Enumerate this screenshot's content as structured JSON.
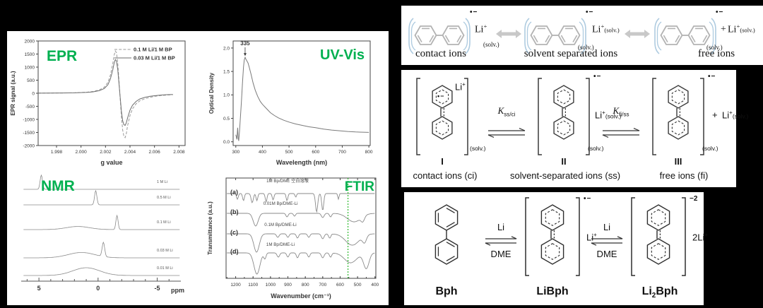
{
  "figure": {
    "background": "#000000",
    "accent_green": "#00b050",
    "ftir_line_green": "#2db92d"
  },
  "chart_data": [
    {
      "id": "epr",
      "type": "line",
      "title": "EPR",
      "xlabel": "g value",
      "ylabel": "EPR signal (a.u.)",
      "xlim": [
        1.9965,
        2.0085
      ],
      "ylim": [
        -2000,
        2000
      ],
      "xticks": [
        1.998,
        2.0,
        2.002,
        2.004,
        2.006,
        2.008
      ],
      "yticks": [
        -2000,
        -1500,
        -1000,
        -500,
        0,
        500,
        1000,
        1500,
        2000
      ],
      "legend_position": "top-right",
      "grid": false,
      "series": [
        {
          "name": "0.1 M Li/1 M BP",
          "style": "dashed",
          "color": "#9a9a9a",
          "points": [
            [
              1.9965,
              5
            ],
            [
              1.9975,
              8
            ],
            [
              1.9985,
              12
            ],
            [
              1.9995,
              20
            ],
            [
              2.0005,
              40
            ],
            [
              2.001,
              70
            ],
            [
              2.0015,
              130
            ],
            [
              2.0019,
              230
            ],
            [
              2.0022,
              420
            ],
            [
              2.0024,
              700
            ],
            [
              2.0026,
              1150
            ],
            [
              2.0027,
              1450
            ],
            [
              2.0028,
              1620
            ],
            [
              2.0029,
              1550
            ],
            [
              2.003,
              1150
            ],
            [
              2.0031,
              500
            ],
            [
              2.0032,
              -200
            ],
            [
              2.0033,
              -900
            ],
            [
              2.0034,
              -1400
            ],
            [
              2.0035,
              -1650
            ],
            [
              2.0036,
              -1700
            ],
            [
              2.0037,
              -1550
            ],
            [
              2.0038,
              -1250
            ],
            [
              2.004,
              -850
            ],
            [
              2.0042,
              -600
            ],
            [
              2.0045,
              -400
            ],
            [
              2.0048,
              -290
            ],
            [
              2.0052,
              -210
            ],
            [
              2.0056,
              -160
            ],
            [
              2.006,
              -120
            ],
            [
              2.0065,
              -90
            ],
            [
              2.007,
              -70
            ],
            [
              2.0075,
              -55
            ]
          ]
        },
        {
          "name": "0.03 M Li/1 M BP",
          "style": "solid",
          "color": "#6e6e6e",
          "points": [
            [
              1.9965,
              4
            ],
            [
              1.9975,
              6
            ],
            [
              1.9985,
              10
            ],
            [
              1.9995,
              16
            ],
            [
              2.0005,
              32
            ],
            [
              2.001,
              55
            ],
            [
              2.0015,
              100
            ],
            [
              2.0019,
              180
            ],
            [
              2.0022,
              330
            ],
            [
              2.0024,
              550
            ],
            [
              2.0026,
              900
            ],
            [
              2.0027,
              1150
            ],
            [
              2.0028,
              1290
            ],
            [
              2.0029,
              1230
            ],
            [
              2.003,
              900
            ],
            [
              2.0031,
              380
            ],
            [
              2.0032,
              -150
            ],
            [
              2.0033,
              -700
            ],
            [
              2.0034,
              -1050
            ],
            [
              2.0035,
              -1200
            ],
            [
              2.0036,
              -1230
            ],
            [
              2.0037,
              -1130
            ],
            [
              2.0038,
              -950
            ],
            [
              2.004,
              -650
            ],
            [
              2.0042,
              -460
            ],
            [
              2.0045,
              -310
            ],
            [
              2.0048,
              -220
            ],
            [
              2.0052,
              -160
            ],
            [
              2.0056,
              -120
            ],
            [
              2.006,
              -95
            ],
            [
              2.0065,
              -70
            ],
            [
              2.007,
              -55
            ],
            [
              2.0075,
              -45
            ]
          ]
        }
      ]
    },
    {
      "id": "uv",
      "type": "line",
      "title": "UV-Vis",
      "xlabel": "Wavelength (nm)",
      "ylabel": "Optical Density",
      "xlim": [
        290,
        805
      ],
      "ylim": [
        -0.08,
        2.15
      ],
      "xticks": [
        300,
        400,
        500,
        600,
        700,
        800
      ],
      "yticks": [
        0.0,
        0.5,
        1.0,
        1.5,
        2.0
      ],
      "peak_annotation": {
        "x": 335,
        "y": 1.8,
        "label": "335"
      },
      "color": "#7a7a7a",
      "points": [
        [
          300,
          0.15
        ],
        [
          304,
          0.05
        ],
        [
          307,
          0.3
        ],
        [
          309,
          0.08
        ],
        [
          311,
          0.02
        ],
        [
          314,
          0.22
        ],
        [
          317,
          0.5
        ],
        [
          321,
          0.85
        ],
        [
          325,
          1.25
        ],
        [
          329,
          1.6
        ],
        [
          332,
          1.75
        ],
        [
          335,
          1.8
        ],
        [
          338,
          1.76
        ],
        [
          342,
          1.72
        ],
        [
          346,
          1.68
        ],
        [
          350,
          1.6
        ],
        [
          357,
          1.45
        ],
        [
          365,
          1.25
        ],
        [
          373,
          1.1
        ],
        [
          382,
          0.97
        ],
        [
          392,
          0.86
        ],
        [
          400,
          0.8
        ],
        [
          415,
          0.71
        ],
        [
          430,
          0.62
        ],
        [
          445,
          0.56
        ],
        [
          460,
          0.51
        ],
        [
          480,
          0.46
        ],
        [
          500,
          0.42
        ],
        [
          525,
          0.38
        ],
        [
          550,
          0.35
        ],
        [
          575,
          0.32
        ],
        [
          600,
          0.3
        ],
        [
          630,
          0.27
        ],
        [
          660,
          0.25
        ],
        [
          690,
          0.235
        ],
        [
          720,
          0.22
        ],
        [
          750,
          0.21
        ],
        [
          775,
          0.205
        ],
        [
          800,
          0.2
        ]
      ]
    },
    {
      "id": "nmr",
      "type": "line",
      "title": "NMR",
      "xlabel": "ppm",
      "xlim": [
        6.5,
        -7
      ],
      "xticks": [
        5,
        0,
        -5
      ],
      "color": "#8a8a8a",
      "traces": [
        {
          "label": "1 M Li",
          "peaks": [
            {
              "ppm": 4.8,
              "height": 1.0,
              "width": 0.14
            }
          ]
        },
        {
          "label": "0.5 M Li",
          "peaks": [
            {
              "ppm": 0.2,
              "height": 1.0,
              "width": 0.14
            }
          ]
        },
        {
          "label": "0.1 M Li",
          "peaks": [
            {
              "ppm": -1.6,
              "height": 1.0,
              "width": 0.13
            },
            {
              "ppm": 1.7,
              "height": 0.22,
              "width": 1.4
            }
          ]
        },
        {
          "label": "0.03 M Li",
          "peaks": [
            {
              "ppm": -0.45,
              "height": 1.0,
              "width": 0.15
            },
            {
              "ppm": 1.4,
              "height": 0.38,
              "width": 1.6
            }
          ]
        },
        {
          "label": "0.01 M Li",
          "peaks": [
            {
              "ppm": 1.0,
              "height": 0.55,
              "width": 1.6
            }
          ]
        }
      ]
    },
    {
      "id": "ftir",
      "type": "line",
      "title": "FTIR",
      "xlabel": "Wavenumber (cm⁻¹)",
      "ylabel": "Transmittance (a.u.)",
      "xlim": [
        1255,
        395
      ],
      "xticks": [
        1200,
        1100,
        1000,
        900,
        800,
        700,
        600,
        500,
        400
      ],
      "marker_line": {
        "x": 555,
        "style": "dashed",
        "color": "#2db92d"
      },
      "color": "#8a8a8a",
      "traces": [
        {
          "tag": "(a)",
          "label": "1M Bp/DME 空白溶液",
          "dips": [
            {
              "c": 1190,
              "w": 7,
              "d": 8
            },
            {
              "c": 1155,
              "w": 7,
              "d": 10
            },
            {
              "c": 1105,
              "w": 9,
              "d": 13
            },
            {
              "c": 1078,
              "w": 7,
              "d": 10
            },
            {
              "c": 1025,
              "w": 7,
              "d": 12
            },
            {
              "c": 985,
              "w": 7,
              "d": 9
            },
            {
              "c": 905,
              "w": 7,
              "d": 10
            },
            {
              "c": 855,
              "w": 6,
              "d": 5
            },
            {
              "c": 735,
              "w": 9,
              "d": 26
            },
            {
              "c": 700,
              "w": 8,
              "d": 24
            },
            {
              "c": 610,
              "w": 5,
              "d": 8
            }
          ]
        },
        {
          "tag": "(b)",
          "label": "0.01M Bp/DME-Li",
          "dips": [
            {
              "c": 1085,
              "w": 20,
              "d": 18
            },
            {
              "c": 905,
              "w": 9,
              "d": 5
            },
            {
              "c": 862,
              "w": 8,
              "d": 4
            },
            {
              "c": 700,
              "w": 11,
              "d": 6
            },
            {
              "c": 655,
              "w": 9,
              "d": 5
            },
            {
              "c": 520,
              "w": 55,
              "d": 12
            },
            {
              "c": 470,
              "w": 14,
              "d": 7
            }
          ]
        },
        {
          "tag": "(c)",
          "label": "0.1M Bp/DME-Li",
          "dips": [
            {
              "c": 1080,
              "w": 22,
              "d": 26
            },
            {
              "c": 958,
              "w": 10,
              "d": 5
            },
            {
              "c": 900,
              "w": 9,
              "d": 5
            },
            {
              "c": 845,
              "w": 9,
              "d": 6
            },
            {
              "c": 780,
              "w": 9,
              "d": 5
            },
            {
              "c": 700,
              "w": 11,
              "d": 7
            },
            {
              "c": 660,
              "w": 9,
              "d": 6
            },
            {
              "c": 530,
              "w": 55,
              "d": 16
            },
            {
              "c": 460,
              "w": 16,
              "d": 10
            }
          ]
        },
        {
          "tag": "(d)",
          "label": "1M Bp/DME-Li",
          "dips": [
            {
              "c": 1078,
              "w": 24,
              "d": 30
            },
            {
              "c": 1032,
              "w": 9,
              "d": 8
            },
            {
              "c": 955,
              "w": 10,
              "d": 6
            },
            {
              "c": 900,
              "w": 9,
              "d": 6
            },
            {
              "c": 845,
              "w": 9,
              "d": 7
            },
            {
              "c": 780,
              "w": 9,
              "d": 6
            },
            {
              "c": 700,
              "w": 11,
              "d": 7
            },
            {
              "c": 655,
              "w": 9,
              "d": 6
            },
            {
              "c": 540,
              "w": 50,
              "d": 14
            },
            {
              "c": 450,
              "w": 22,
              "d": 22
            }
          ]
        }
      ]
    }
  ],
  "ions_row": {
    "radical_charge": "•−",
    "solv": "(solv.)",
    "states": [
      {
        "caption": "contact ions",
        "cation": "Li",
        "cation_charge": "+"
      },
      {
        "caption": "solvent separated ions",
        "cation": "Li",
        "cation_charge": "+",
        "cation_sub": "(solv.)"
      },
      {
        "caption": "free ions",
        "plus": "+",
        "cation": "Li",
        "cation_charge": "+",
        "cation_sub": "(solv.)"
      }
    ]
  },
  "equilibrium": {
    "radical_charge": "•−",
    "solv": "(solv.)",
    "constants": [
      {
        "symbol": "K",
        "subscript": "ss/ci"
      },
      {
        "symbol": "K",
        "subscript": "fi/ss"
      }
    ],
    "structures": [
      {
        "numeral": "I",
        "caption": "contact ions (ci)",
        "ring_radical": "•−",
        "cation": "Li",
        "cation_charge": "+"
      },
      {
        "numeral": "II",
        "caption": "solvent-separated ions (ss)",
        "charge": "•−",
        "cation": "Li",
        "cation_charge": "+",
        "cation_sub": "(solv.)"
      },
      {
        "numeral": "III",
        "caption": "free ions (fi)",
        "plus": "+",
        "charge": "•−",
        "cation": "Li",
        "cation_charge": "+",
        "cation_sub": "(solv.)"
      }
    ]
  },
  "bph_scheme": {
    "arrows": [
      {
        "top": "Li",
        "bottom": "DME"
      },
      {
        "top": "Li",
        "bottom": "DME"
      }
    ],
    "species": [
      {
        "label": "Bph"
      },
      {
        "label": "LiBph",
        "charge": "•−",
        "cation": "Li",
        "cation_charge": "+"
      },
      {
        "label_base1": "Li",
        "label_sub": "2",
        "label_base2": "Bph",
        "charge": "−2",
        "cation": "2Li",
        "cation_charge": "+"
      }
    ]
  }
}
